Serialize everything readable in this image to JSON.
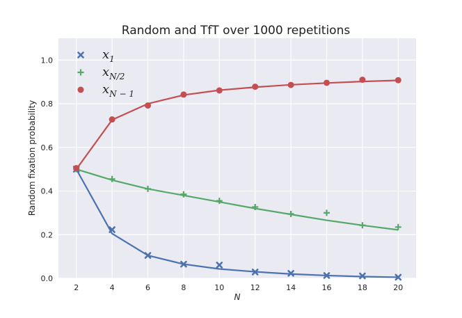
{
  "chart_data": {
    "type": "line",
    "title": "Random and TfT over 1000 repetitions",
    "xlabel": "N",
    "ylabel": "Random fixation probability",
    "xlim": [
      1,
      21
    ],
    "ylim": [
      0,
      1.1
    ],
    "x_ticks": [
      2,
      4,
      6,
      8,
      10,
      12,
      14,
      16,
      18,
      20
    ],
    "y_ticks": [
      0.0,
      0.2,
      0.4,
      0.6,
      0.8,
      1.0
    ],
    "grid": true,
    "legend_position": "top-left",
    "series": [
      {
        "name": "x_1",
        "legend_main": "x",
        "legend_sub": "1",
        "color": "#4c72b0",
        "marker": "x",
        "x": [
          2,
          4,
          6,
          8,
          10,
          12,
          14,
          16,
          18,
          20
        ],
        "points": [
          0.5,
          0.223,
          0.105,
          0.065,
          0.061,
          0.029,
          0.023,
          0.013,
          0.011,
          0.005
        ],
        "line": [
          0.5,
          0.205,
          0.105,
          0.065,
          0.043,
          0.03,
          0.02,
          0.013,
          0.008,
          0.005
        ]
      },
      {
        "name": "x_{N/2}",
        "legend_main": "x",
        "legend_sub": "N/2",
        "color": "#55a868",
        "marker": "plus",
        "x": [
          2,
          4,
          6,
          8,
          10,
          12,
          14,
          16,
          18,
          20
        ],
        "points": [
          0.5,
          0.455,
          0.41,
          0.385,
          0.355,
          0.327,
          0.295,
          0.3,
          0.243,
          0.235
        ],
        "line": [
          0.5,
          0.45,
          0.41,
          0.38,
          0.35,
          0.32,
          0.293,
          0.266,
          0.243,
          0.222
        ]
      },
      {
        "name": "x_{N-1}",
        "legend_main": "x",
        "legend_sub": "N − 1",
        "color": "#c44e52",
        "marker": "circle",
        "x": [
          2,
          4,
          6,
          8,
          10,
          12,
          14,
          16,
          18,
          20
        ],
        "points": [
          0.505,
          0.728,
          0.792,
          0.842,
          0.861,
          0.878,
          0.886,
          0.896,
          0.91,
          0.908
        ],
        "line": [
          0.5,
          0.726,
          0.8,
          0.84,
          0.862,
          0.876,
          0.887,
          0.895,
          0.902,
          0.907
        ]
      }
    ]
  }
}
